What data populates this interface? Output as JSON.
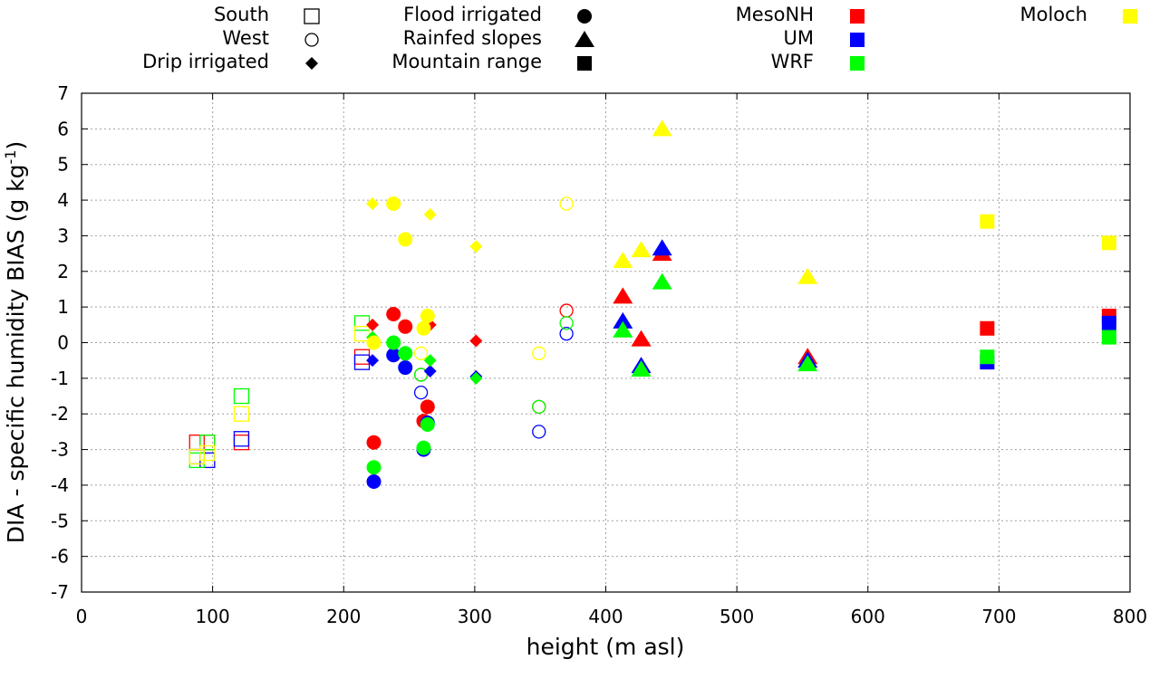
{
  "chart_data": {
    "type": "scatter",
    "xlabel": "height (m asl)",
    "ylabel_main": "DIA - specific humidity BIAS (g kg",
    "ylabel_sup": "-1",
    "ylabel_close": ")",
    "xlim": [
      0,
      800
    ],
    "ylim": [
      -7,
      7
    ],
    "xticks": [
      "0",
      "100",
      "200",
      "300",
      "400",
      "500",
      "600",
      "700",
      "800"
    ],
    "yticks": [
      "-7",
      "-6",
      "-5",
      "-4",
      "-3",
      "-2",
      "-1",
      "0",
      "1",
      "2",
      "3",
      "4",
      "5",
      "6",
      "7"
    ],
    "grid": true,
    "colors": {
      "MesoNH": "#ff0000",
      "UM": "#0000ff",
      "WRF": "#00ff00",
      "Moloch": "#ffff00"
    },
    "legend": {
      "shapes": [
        {
          "label": "South",
          "marker": "square-open"
        },
        {
          "label": "West",
          "marker": "circle-open"
        },
        {
          "label": "Drip irrigated",
          "marker": "diamond"
        },
        {
          "label": "Flood irrigated",
          "marker": "circle"
        },
        {
          "label": "Rainfed slopes",
          "marker": "triangle"
        },
        {
          "label": "Mountain range",
          "marker": "square"
        }
      ],
      "models": [
        {
          "label": "MesoNH",
          "model": "MesoNH"
        },
        {
          "label": "UM",
          "model": "UM"
        },
        {
          "label": "WRF",
          "model": "WRF"
        },
        {
          "label": "Moloch",
          "model": "Moloch"
        }
      ]
    },
    "series": [
      {
        "name": "MesoNH",
        "group": "South",
        "marker": "square-open",
        "points": [
          [
            88,
            -2.8
          ],
          [
            96,
            -2.8
          ],
          [
            122,
            -2.8
          ],
          [
            214,
            -0.4
          ]
        ]
      },
      {
        "name": "UM",
        "group": "South",
        "marker": "square-open",
        "points": [
          [
            88,
            -3.2
          ],
          [
            96,
            -3.3
          ],
          [
            122,
            -2.7
          ],
          [
            214,
            -0.55
          ]
        ]
      },
      {
        "name": "WRF",
        "group": "South",
        "marker": "square-open",
        "points": [
          [
            88,
            -3.3
          ],
          [
            96,
            -2.8
          ],
          [
            122,
            -1.5
          ],
          [
            214,
            0.55
          ]
        ]
      },
      {
        "name": "Moloch",
        "group": "South",
        "marker": "square-open",
        "points": [
          [
            88,
            -3.2
          ],
          [
            96,
            -3.1
          ],
          [
            122,
            -2.0
          ],
          [
            214,
            0.25
          ]
        ]
      },
      {
        "name": "MesoNH",
        "group": "West",
        "marker": "circle-open",
        "points": [
          [
            259,
            -0.9
          ],
          [
            349,
            -1.8
          ],
          [
            370,
            0.9
          ]
        ]
      },
      {
        "name": "UM",
        "group": "West",
        "marker": "circle-open",
        "points": [
          [
            259,
            -1.4
          ],
          [
            349,
            -2.5
          ],
          [
            370,
            0.25
          ]
        ]
      },
      {
        "name": "WRF",
        "group": "West",
        "marker": "circle-open",
        "points": [
          [
            259,
            -0.9
          ],
          [
            349,
            -1.8
          ],
          [
            370,
            0.55
          ]
        ]
      },
      {
        "name": "Moloch",
        "group": "West",
        "marker": "circle-open",
        "points": [
          [
            259,
            -0.3
          ],
          [
            349,
            -0.3
          ],
          [
            370,
            3.9
          ]
        ]
      },
      {
        "name": "MesoNH",
        "group": "Drip irrigated",
        "marker": "diamond",
        "points": [
          [
            222,
            0.5
          ],
          [
            266,
            0.5
          ],
          [
            301,
            0.05
          ]
        ]
      },
      {
        "name": "UM",
        "group": "Drip irrigated",
        "marker": "diamond",
        "points": [
          [
            222,
            -0.5
          ],
          [
            266,
            -0.8
          ],
          [
            301,
            -0.95
          ]
        ]
      },
      {
        "name": "WRF",
        "group": "Drip irrigated",
        "marker": "diamond",
        "points": [
          [
            222,
            0.15
          ],
          [
            266,
            -0.5
          ],
          [
            301,
            -1.0
          ]
        ]
      },
      {
        "name": "Moloch",
        "group": "Drip irrigated",
        "marker": "diamond",
        "points": [
          [
            222,
            3.9
          ],
          [
            266,
            3.6
          ],
          [
            301,
            2.7
          ]
        ]
      },
      {
        "name": "MesoNH",
        "group": "Flood irrigated",
        "marker": "circle",
        "points": [
          [
            223,
            -2.8
          ],
          [
            238,
            0.8
          ],
          [
            247,
            0.45
          ],
          [
            261,
            -2.2
          ],
          [
            264,
            -1.8
          ]
        ]
      },
      {
        "name": "UM",
        "group": "Flood irrigated",
        "marker": "circle",
        "points": [
          [
            223,
            -3.9
          ],
          [
            238,
            -0.35
          ],
          [
            247,
            -0.7
          ],
          [
            261,
            -3.0
          ],
          [
            264,
            -2.25
          ]
        ]
      },
      {
        "name": "WRF",
        "group": "Flood irrigated",
        "marker": "circle",
        "points": [
          [
            223,
            -3.5
          ],
          [
            238,
            0.0
          ],
          [
            247,
            -0.3
          ],
          [
            261,
            -2.95
          ],
          [
            264,
            -2.3
          ]
        ]
      },
      {
        "name": "Moloch",
        "group": "Flood irrigated",
        "marker": "circle",
        "points": [
          [
            223,
            0.0
          ],
          [
            238,
            3.9
          ],
          [
            247,
            2.9
          ],
          [
            261,
            0.4
          ],
          [
            264,
            0.75
          ]
        ]
      },
      {
        "name": "MesoNH",
        "group": "Rainfed slopes",
        "marker": "triangle",
        "points": [
          [
            413,
            1.3
          ],
          [
            427,
            0.1
          ],
          [
            443,
            2.5
          ],
          [
            554,
            -0.4
          ]
        ]
      },
      {
        "name": "UM",
        "group": "Rainfed slopes",
        "marker": "triangle",
        "points": [
          [
            413,
            0.6
          ],
          [
            427,
            -0.65
          ],
          [
            443,
            2.65
          ],
          [
            554,
            -0.5
          ]
        ]
      },
      {
        "name": "WRF",
        "group": "Rainfed slopes",
        "marker": "triangle",
        "points": [
          [
            413,
            0.35
          ],
          [
            427,
            -0.75
          ],
          [
            443,
            1.7
          ],
          [
            554,
            -0.6
          ]
        ]
      },
      {
        "name": "Moloch",
        "group": "Rainfed slopes",
        "marker": "triangle",
        "points": [
          [
            413,
            2.3
          ],
          [
            427,
            2.6
          ],
          [
            443,
            6.0
          ],
          [
            554,
            1.85
          ]
        ]
      },
      {
        "name": "MesoNH",
        "group": "Mountain range",
        "marker": "square",
        "points": [
          [
            691,
            0.4
          ],
          [
            784,
            0.75
          ]
        ]
      },
      {
        "name": "UM",
        "group": "Mountain range",
        "marker": "square",
        "points": [
          [
            691,
            -0.55
          ],
          [
            784,
            0.55
          ]
        ]
      },
      {
        "name": "WRF",
        "group": "Mountain range",
        "marker": "square",
        "points": [
          [
            691,
            -0.4
          ],
          [
            784,
            0.15
          ]
        ]
      },
      {
        "name": "Moloch",
        "group": "Mountain range",
        "marker": "square",
        "points": [
          [
            691,
            3.4
          ],
          [
            784,
            2.8
          ]
        ]
      }
    ]
  }
}
